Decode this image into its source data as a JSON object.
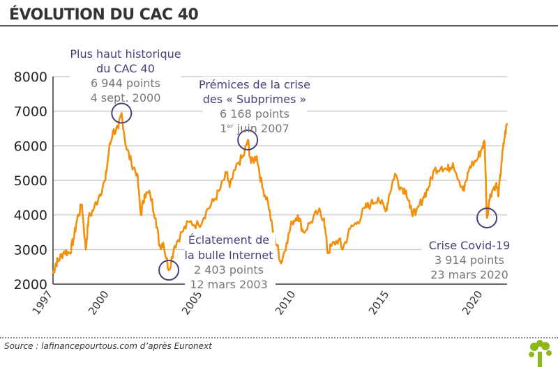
{
  "title": "ÉVOLUTION DU CAC 40",
  "source": "Source : lafinancepourtous.com d’après Euronext",
  "colors": {
    "line": "#f0900c",
    "annot_title": "#4b3d7a",
    "annot_value": "#777777",
    "grid": "#cccccc",
    "logo": "#8db81a"
  },
  "chart_data": {
    "type": "line",
    "title": "ÉVOLUTION DU CAC 40",
    "xlabel": "",
    "ylabel": "",
    "xlim": [
      1997,
      2021.3
    ],
    "ylim": [
      2000,
      8000
    ],
    "yticks": [
      "2000",
      "3000",
      "4000",
      "5000",
      "6000",
      "7000",
      "8000"
    ],
    "xticks": [
      "1997",
      "2000",
      "2005",
      "2010",
      "2015",
      "2020"
    ],
    "grid": true,
    "series": [
      {
        "name": "CAC 40",
        "points": [
          [
            1997.0,
            2300
          ],
          [
            1997.15,
            2600
          ],
          [
            1997.3,
            2700
          ],
          [
            1997.6,
            2950
          ],
          [
            1997.9,
            2900
          ],
          [
            1998.1,
            3300
          ],
          [
            1998.3,
            3900
          ],
          [
            1998.55,
            4300
          ],
          [
            1998.75,
            3000
          ],
          [
            1998.9,
            3900
          ],
          [
            1999.2,
            4200
          ],
          [
            1999.5,
            4600
          ],
          [
            1999.8,
            5000
          ],
          [
            2000.0,
            5900
          ],
          [
            2000.2,
            6400
          ],
          [
            2000.5,
            6500
          ],
          [
            2000.67,
            6944
          ],
          [
            2000.9,
            6000
          ],
          [
            2001.2,
            5500
          ],
          [
            2001.5,
            5200
          ],
          [
            2001.7,
            4000
          ],
          [
            2001.9,
            4600
          ],
          [
            2002.2,
            4600
          ],
          [
            2002.5,
            3900
          ],
          [
            2002.7,
            3100
          ],
          [
            2002.9,
            3200
          ],
          [
            2003.2,
            2403
          ],
          [
            2003.5,
            3100
          ],
          [
            2003.9,
            3500
          ],
          [
            2004.3,
            3800
          ],
          [
            2004.8,
            3700
          ],
          [
            2005.2,
            4100
          ],
          [
            2005.6,
            4400
          ],
          [
            2005.9,
            4700
          ],
          [
            2006.3,
            5200
          ],
          [
            2006.45,
            4800
          ],
          [
            2006.9,
            5500
          ],
          [
            2007.2,
            5700
          ],
          [
            2007.42,
            6168
          ],
          [
            2007.6,
            5500
          ],
          [
            2007.9,
            5700
          ],
          [
            2008.2,
            4800
          ],
          [
            2008.5,
            4400
          ],
          [
            2008.8,
            3400
          ],
          [
            2009.0,
            3100
          ],
          [
            2009.2,
            2600
          ],
          [
            2009.5,
            3200
          ],
          [
            2009.8,
            3800
          ],
          [
            2010.1,
            4000
          ],
          [
            2010.4,
            3500
          ],
          [
            2010.8,
            3800
          ],
          [
            2011.2,
            4100
          ],
          [
            2011.5,
            3900
          ],
          [
            2011.7,
            2900
          ],
          [
            2011.9,
            3100
          ],
          [
            2012.3,
            3300
          ],
          [
            2012.5,
            3000
          ],
          [
            2012.9,
            3600
          ],
          [
            2013.3,
            3800
          ],
          [
            2013.7,
            4200
          ],
          [
            2014.0,
            4300
          ],
          [
            2014.4,
            4500
          ],
          [
            2014.8,
            4100
          ],
          [
            2015.0,
            4600
          ],
          [
            2015.3,
            5200
          ],
          [
            2015.6,
            4800
          ],
          [
            2015.9,
            4700
          ],
          [
            2016.1,
            4200
          ],
          [
            2016.4,
            4000
          ],
          [
            2016.8,
            4500
          ],
          [
            2017.1,
            4800
          ],
          [
            2017.4,
            5300
          ],
          [
            2017.8,
            5400
          ],
          [
            2018.1,
            5300
          ],
          [
            2018.4,
            5500
          ],
          [
            2018.9,
            4800
          ],
          [
            2019.0,
            4700
          ],
          [
            2019.3,
            5400
          ],
          [
            2019.7,
            5600
          ],
          [
            2020.0,
            6000
          ],
          [
            2020.1,
            6100
          ],
          [
            2020.22,
            3914
          ],
          [
            2020.4,
            4600
          ],
          [
            2020.7,
            4900
          ],
          [
            2020.85,
            4600
          ],
          [
            2021.0,
            5500
          ],
          [
            2021.15,
            6200
          ],
          [
            2021.3,
            6650
          ]
        ]
      }
    ],
    "annotations": [
      {
        "x": 2000.67,
        "y": 6944,
        "title": [
          "Plus haut historique",
          "du CAC 40"
        ],
        "value": "6 944 points",
        "date": "4 sept. 2000"
      },
      {
        "x": 2003.2,
        "y": 2403,
        "title": [
          "Éclatement de",
          "la bulle Internet"
        ],
        "value": "2 403 points",
        "date": "12 mars 2003"
      },
      {
        "x": 2007.42,
        "y": 6168,
        "title": [
          "Prémices de la crise",
          "des « Subprimes »"
        ],
        "value": "6 168 points",
        "date_prefix": "1",
        "date_sup": "er",
        "date": " juin 2007"
      },
      {
        "x": 2020.22,
        "y": 3914,
        "title": [
          "Crise Covid-19"
        ],
        "value": "3 914 points",
        "date": "23 mars 2020"
      }
    ]
  }
}
